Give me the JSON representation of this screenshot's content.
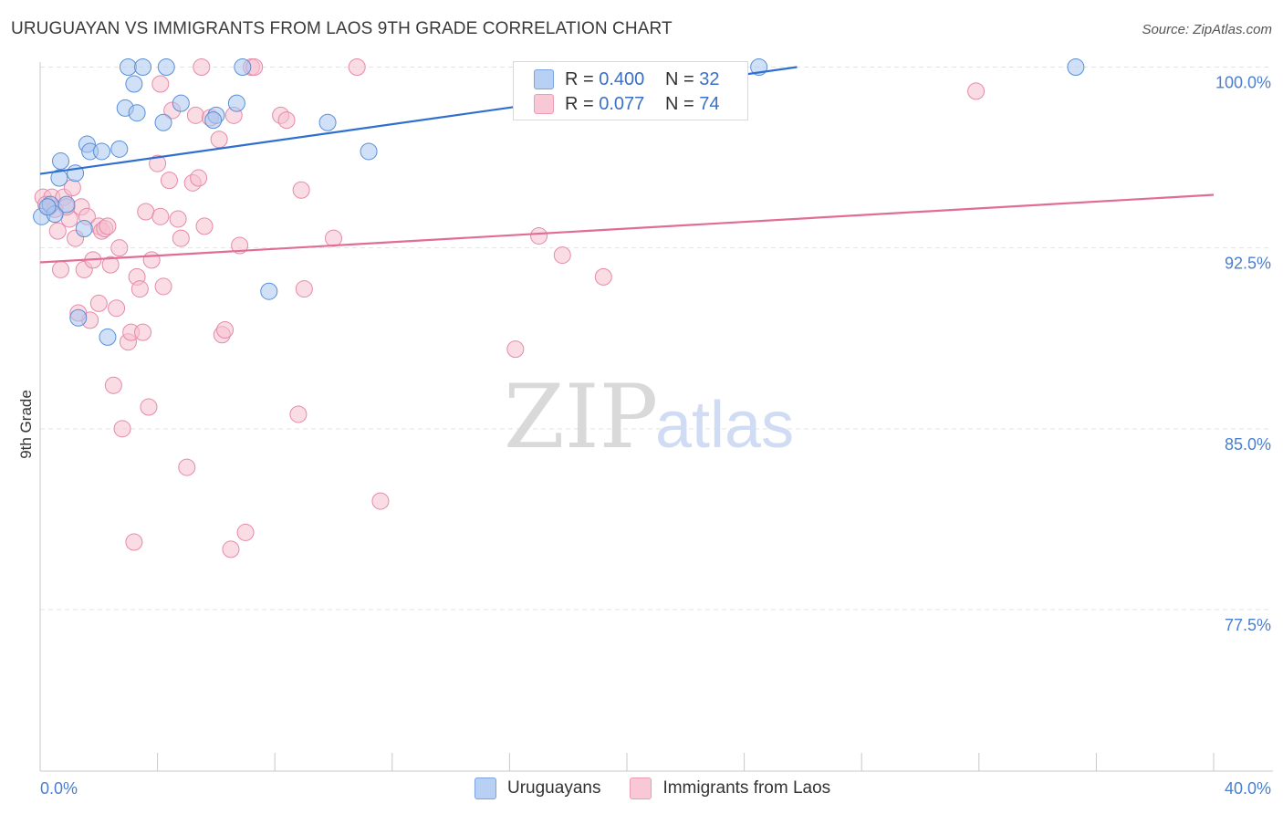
{
  "header": {
    "title": "URUGUAYAN VS IMMIGRANTS FROM LAOS 9TH GRADE CORRELATION CHART",
    "source": "Source: ZipAtlas.com"
  },
  "legend": {
    "rows": [
      {
        "r_label": "R =",
        "r_value": "0.400",
        "n_label": "N =",
        "n_value": "32"
      },
      {
        "r_label": "R =",
        "r_value": "0.077",
        "n_label": "N =",
        "n_value": "74"
      }
    ]
  },
  "watermark": {
    "zip": "ZIP",
    "atlas": "atlas"
  },
  "colors": {
    "uru_fill": "#a9c6f0",
    "uru_stroke": "#5a8fd6",
    "uru_line": "#2f6fd0",
    "laos_fill": "#f6bfd0",
    "laos_stroke": "#e58aa8",
    "laos_line": "#e06d95",
    "grid": "#e3e3e3",
    "axis_text": "#4a7fd0"
  },
  "chart_data": {
    "type": "scatter",
    "title": "URUGUAYAN VS IMMIGRANTS FROM LAOS 9TH GRADE CORRELATION CHART",
    "xlabel": "",
    "ylabel": "9th Grade",
    "xlim": [
      0,
      40
    ],
    "ylim": [
      70.8,
      100.7
    ],
    "x_tick_labels": [
      {
        "value": 0,
        "label": "0.0%"
      },
      {
        "value": 40,
        "label": "40.0%"
      }
    ],
    "y_tick_labels": [
      {
        "value": 100,
        "label": "100.0%"
      },
      {
        "value": 92.5,
        "label": "92.5%"
      },
      {
        "value": 85,
        "label": "85.0%"
      },
      {
        "value": 77.5,
        "label": "77.5%"
      }
    ],
    "series": [
      {
        "name": "Uruguayans",
        "r": 0.4,
        "n": 32,
        "trend": {
          "x": [
            0,
            25.8
          ],
          "y": [
            95.57,
            100.0
          ]
        },
        "points": [
          {
            "x": 0.05,
            "y": 93.8
          },
          {
            "x": 0.35,
            "y": 94.3
          },
          {
            "x": 0.5,
            "y": 93.9
          },
          {
            "x": 0.7,
            "y": 96.1
          },
          {
            "x": 0.65,
            "y": 95.4
          },
          {
            "x": 0.9,
            "y": 94.3
          },
          {
            "x": 1.2,
            "y": 95.6
          },
          {
            "x": 1.6,
            "y": 96.8
          },
          {
            "x": 1.7,
            "y": 96.5
          },
          {
            "x": 2.1,
            "y": 96.5
          },
          {
            "x": 2.7,
            "y": 96.6
          },
          {
            "x": 2.9,
            "y": 98.3
          },
          {
            "x": 3.0,
            "y": 100.0
          },
          {
            "x": 3.3,
            "y": 98.1
          },
          {
            "x": 3.5,
            "y": 100.0
          },
          {
            "x": 4.2,
            "y": 97.7
          },
          {
            "x": 4.3,
            "y": 100.0
          },
          {
            "x": 4.8,
            "y": 98.5
          },
          {
            "x": 6.0,
            "y": 98.0
          },
          {
            "x": 6.7,
            "y": 98.5
          },
          {
            "x": 6.9,
            "y": 100.0
          },
          {
            "x": 3.2,
            "y": 99.3
          },
          {
            "x": 9.8,
            "y": 97.7
          },
          {
            "x": 11.2,
            "y": 96.5
          },
          {
            "x": 7.8,
            "y": 90.7
          },
          {
            "x": 1.3,
            "y": 89.6
          },
          {
            "x": 2.3,
            "y": 88.8
          },
          {
            "x": 35.3,
            "y": 100.0
          },
          {
            "x": 24.5,
            "y": 100.0
          },
          {
            "x": 1.5,
            "y": 93.3
          },
          {
            "x": 0.25,
            "y": 94.2
          },
          {
            "x": 5.9,
            "y": 97.8
          }
        ]
      },
      {
        "name": "Immigrants from Laos",
        "r": 0.077,
        "n": 74,
        "trend": {
          "x": [
            0,
            40
          ],
          "y": [
            91.9,
            94.7
          ]
        },
        "points": [
          {
            "x": 0.1,
            "y": 94.6
          },
          {
            "x": 0.3,
            "y": 94.2
          },
          {
            "x": 0.4,
            "y": 94.6
          },
          {
            "x": 0.5,
            "y": 94.1
          },
          {
            "x": 0.6,
            "y": 93.2
          },
          {
            "x": 0.7,
            "y": 91.6
          },
          {
            "x": 0.8,
            "y": 94.6
          },
          {
            "x": 1.0,
            "y": 93.7
          },
          {
            "x": 1.2,
            "y": 92.9
          },
          {
            "x": 1.4,
            "y": 94.2
          },
          {
            "x": 1.5,
            "y": 91.6
          },
          {
            "x": 1.6,
            "y": 93.8
          },
          {
            "x": 1.7,
            "y": 89.5
          },
          {
            "x": 1.8,
            "y": 92.0
          },
          {
            "x": 2.0,
            "y": 93.4
          },
          {
            "x": 2.1,
            "y": 93.2
          },
          {
            "x": 2.2,
            "y": 93.3
          },
          {
            "x": 2.4,
            "y": 91.8
          },
          {
            "x": 2.5,
            "y": 86.8
          },
          {
            "x": 2.6,
            "y": 90.0
          },
          {
            "x": 2.7,
            "y": 92.5
          },
          {
            "x": 2.8,
            "y": 85.0
          },
          {
            "x": 3.0,
            "y": 88.6
          },
          {
            "x": 3.1,
            "y": 89.0
          },
          {
            "x": 3.2,
            "y": 80.3
          },
          {
            "x": 3.3,
            "y": 91.3
          },
          {
            "x": 3.4,
            "y": 90.8
          },
          {
            "x": 3.5,
            "y": 89.0
          },
          {
            "x": 3.6,
            "y": 94.0
          },
          {
            "x": 3.7,
            "y": 85.9
          },
          {
            "x": 3.8,
            "y": 92.0
          },
          {
            "x": 4.0,
            "y": 96.0
          },
          {
            "x": 4.1,
            "y": 93.8
          },
          {
            "x": 4.2,
            "y": 90.9
          },
          {
            "x": 4.4,
            "y": 95.3
          },
          {
            "x": 4.5,
            "y": 98.2
          },
          {
            "x": 4.7,
            "y": 93.7
          },
          {
            "x": 4.8,
            "y": 92.9
          },
          {
            "x": 5.0,
            "y": 83.4
          },
          {
            "x": 5.2,
            "y": 95.2
          },
          {
            "x": 5.3,
            "y": 98.0
          },
          {
            "x": 5.4,
            "y": 95.4
          },
          {
            "x": 5.5,
            "y": 100.0
          },
          {
            "x": 5.6,
            "y": 93.4
          },
          {
            "x": 5.8,
            "y": 97.9
          },
          {
            "x": 6.1,
            "y": 97.0
          },
          {
            "x": 6.2,
            "y": 88.9
          },
          {
            "x": 6.3,
            "y": 89.1
          },
          {
            "x": 6.5,
            "y": 80.0
          },
          {
            "x": 6.8,
            "y": 92.6
          },
          {
            "x": 7.0,
            "y": 80.7
          },
          {
            "x": 7.2,
            "y": 100.0
          },
          {
            "x": 7.3,
            "y": 100.0
          },
          {
            "x": 8.2,
            "y": 98.0
          },
          {
            "x": 8.4,
            "y": 97.8
          },
          {
            "x": 8.8,
            "y": 85.6
          },
          {
            "x": 8.9,
            "y": 94.9
          },
          {
            "x": 9.0,
            "y": 90.8
          },
          {
            "x": 10.0,
            "y": 92.9
          },
          {
            "x": 10.8,
            "y": 100.0
          },
          {
            "x": 11.6,
            "y": 82.0
          },
          {
            "x": 17.0,
            "y": 93.0
          },
          {
            "x": 16.2,
            "y": 88.3
          },
          {
            "x": 17.8,
            "y": 92.2
          },
          {
            "x": 19.2,
            "y": 91.3
          },
          {
            "x": 31.9,
            "y": 99.0
          },
          {
            "x": 1.3,
            "y": 89.8
          },
          {
            "x": 0.9,
            "y": 94.2
          },
          {
            "x": 2.0,
            "y": 90.2
          },
          {
            "x": 1.1,
            "y": 95.0
          },
          {
            "x": 0.2,
            "y": 94.3
          },
          {
            "x": 4.1,
            "y": 99.3
          },
          {
            "x": 2.3,
            "y": 93.4
          },
          {
            "x": 6.6,
            "y": 98.0
          }
        ]
      }
    ]
  },
  "bottom_legend": {
    "items": [
      {
        "label": "Uruguayans"
      },
      {
        "label": "Immigrants from Laos"
      }
    ]
  }
}
